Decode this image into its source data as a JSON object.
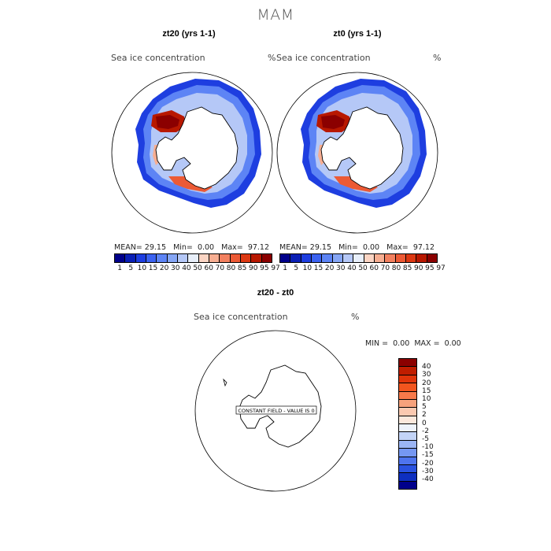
{
  "figure": {
    "title": "MAM"
  },
  "panels": [
    {
      "title": "zt20 (yrs 1-1)",
      "variable": "Sea ice concentration",
      "unit": "%",
      "stats": {
        "mean_label": "MEAN=",
        "mean": "29.15",
        "min_label": "Min=",
        "min": "0.00",
        "max_label": "Max=",
        "max": "97.12"
      }
    },
    {
      "title": "zt0 (yrs 1-1)",
      "variable": "Sea ice concentration",
      "unit": "%",
      "stats": {
        "mean_label": "MEAN=",
        "mean": "29.15",
        "min_label": "Min=",
        "min": "0.00",
        "max_label": "Max=",
        "max": "97.12"
      }
    },
    {
      "title": "zt20 - zt0",
      "variable": "Sea ice concentration",
      "unit": "%",
      "stats": {
        "min_label": "MIN =",
        "min": "0.00",
        "max_label": "MAX =",
        "max": "0.00"
      },
      "annotation": "CONSTANT FIELD - VALUE IS 0"
    }
  ],
  "colorbar_concentration": {
    "labels": [
      "1",
      "5",
      "10",
      "15",
      "20",
      "30",
      "40",
      "50",
      "60",
      "70",
      "80",
      "85",
      "90",
      "95",
      "97"
    ],
    "colors": [
      "#00008b",
      "#0a1fb5",
      "#1e3ee0",
      "#3b62f0",
      "#5d84f5",
      "#86a6f5",
      "#b5c8f7",
      "#e8effa",
      "#fbd5c4",
      "#f7ae92",
      "#f2805f",
      "#ec5a35",
      "#dc3812",
      "#b81800",
      "#8b0000"
    ]
  },
  "colorbar_difference": {
    "labels": [
      "40",
      "30",
      "20",
      "15",
      "10",
      "5",
      "2",
      "0",
      "-2",
      "-5",
      "-10",
      "-15",
      "-20",
      "-30",
      "-40"
    ],
    "colors": [
      "#8b0000",
      "#c01d00",
      "#e0340a",
      "#f2551e",
      "#f7794a",
      "#f7a27c",
      "#fbc9b0",
      "#fbe8dc",
      "#eef3fb",
      "#c3d4f7",
      "#9bb5f5",
      "#7597f2",
      "#4e74ee",
      "#2a52e0",
      "#0e2fc0",
      "#00008b"
    ]
  },
  "map_colors": {
    "land": "#ffffff",
    "coast": "#000000",
    "ice_high": "#b81800",
    "ice_mid": "#f2805f",
    "ice_low": "#1e3ee0"
  }
}
